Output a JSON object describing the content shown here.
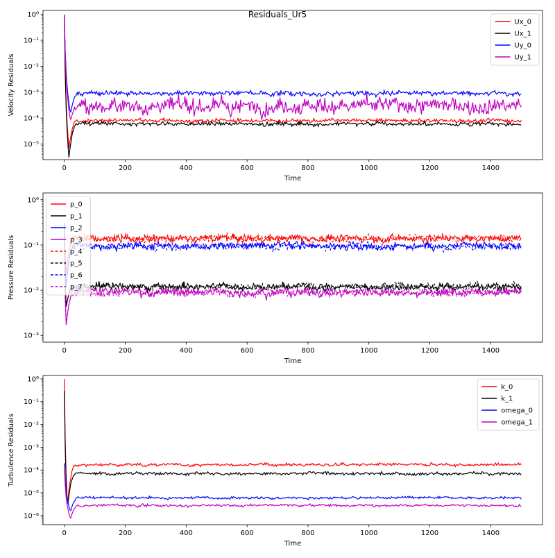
{
  "figure_title": "Residuals_Ur5",
  "chart_data": [
    {
      "type": "line",
      "title": "",
      "xlabel": "Time",
      "ylabel": "Velocity Residuals",
      "xlim": [
        -70,
        1570
      ],
      "ylim_exp": [
        -5.6,
        0.15
      ],
      "yscale": "log",
      "xticks": [
        0,
        200,
        400,
        600,
        800,
        1000,
        1200,
        1400
      ],
      "yticks": [
        {
          "v": -5,
          "label": "10⁻⁵"
        },
        {
          "v": -4,
          "label": "10⁻⁴"
        },
        {
          "v": -3,
          "label": "10⁻³"
        },
        {
          "v": -2,
          "label": "10⁻²"
        },
        {
          "v": -1,
          "label": "10⁻¹"
        },
        {
          "v": 0,
          "label": "10⁰"
        }
      ],
      "legend_position": "top-right",
      "series": [
        {
          "name": "Ux_0",
          "color": "#ff0000",
          "dash": false,
          "start": 0.95,
          "dip": 7e-06,
          "dip_t": 15,
          "steady": 8e-05,
          "noise": 0.06
        },
        {
          "name": "Ux_1",
          "color": "#000000",
          "dash": false,
          "start": 0.9,
          "dip": 3e-06,
          "dip_t": 15,
          "steady": 6e-05,
          "noise": 0.06
        },
        {
          "name": "Uy_0",
          "color": "#0000ff",
          "dash": false,
          "start": 0.95,
          "dip": 0.00015,
          "dip_t": 20,
          "steady": 0.0009,
          "noise": 0.07
        },
        {
          "name": "Uy_1",
          "color": "#bf00bf",
          "dash": false,
          "start": 0.9,
          "dip": 8e-05,
          "dip_t": 20,
          "steady": 0.0003,
          "noise": 0.22
        }
      ]
    },
    {
      "type": "line",
      "title": "",
      "xlabel": "Time",
      "ylabel": "Pressure Residuals",
      "xlim": [
        -70,
        1570
      ],
      "ylim_exp": [
        -3.15,
        0.15
      ],
      "yscale": "log",
      "xticks": [
        0,
        200,
        400,
        600,
        800,
        1000,
        1200,
        1400
      ],
      "yticks": [
        {
          "v": -3,
          "label": "10⁻³"
        },
        {
          "v": -2,
          "label": "10⁻²"
        },
        {
          "v": -1,
          "label": "10⁻¹"
        },
        {
          "v": 0,
          "label": "10⁰"
        }
      ],
      "legend_position": "top-left",
      "series": [
        {
          "name": "p_0",
          "color": "#ff0000",
          "dash": false,
          "start": 0.3,
          "dip": 0.02,
          "dip_t": 5,
          "steady": 0.14,
          "noise": 0.06
        },
        {
          "name": "p_1",
          "color": "#000000",
          "dash": false,
          "start": 0.25,
          "dip": 0.004,
          "dip_t": 5,
          "steady": 0.012,
          "noise": 0.06
        },
        {
          "name": "p_2",
          "color": "#0000ff",
          "dash": false,
          "start": 0.3,
          "dip": 0.01,
          "dip_t": 5,
          "steady": 0.095,
          "noise": 0.06
        },
        {
          "name": "p_3",
          "color": "#bf00bf",
          "dash": false,
          "start": 0.2,
          "dip": 0.0015,
          "dip_t": 5,
          "steady": 0.009,
          "noise": 0.07
        },
        {
          "name": "p_4",
          "color": "#ff0000",
          "dash": true,
          "start": 0.3,
          "dip": 0.02,
          "dip_t": 5,
          "steady": 0.14,
          "noise": 0.06
        },
        {
          "name": "p_5",
          "color": "#000000",
          "dash": true,
          "start": 0.25,
          "dip": 0.004,
          "dip_t": 5,
          "steady": 0.012,
          "noise": 0.06
        },
        {
          "name": "p_6",
          "color": "#0000ff",
          "dash": true,
          "start": 0.3,
          "dip": 0.01,
          "dip_t": 5,
          "steady": 0.095,
          "noise": 0.06
        },
        {
          "name": "p_7",
          "color": "#bf00bf",
          "dash": true,
          "start": 0.2,
          "dip": 0.0015,
          "dip_t": 5,
          "steady": 0.009,
          "noise": 0.07
        }
      ]
    },
    {
      "type": "line",
      "title": "",
      "xlabel": "Time",
      "ylabel": "Turbulence Residuals",
      "xlim": [
        -70,
        1570
      ],
      "ylim_exp": [
        -6.4,
        0.15
      ],
      "yscale": "log",
      "xticks": [
        0,
        200,
        400,
        600,
        800,
        1000,
        1200,
        1400
      ],
      "yticks": [
        {
          "v": -6,
          "label": "10⁻⁶"
        },
        {
          "v": -5,
          "label": "10⁻⁵"
        },
        {
          "v": -4,
          "label": "10⁻⁴"
        },
        {
          "v": -3,
          "label": "10⁻³"
        },
        {
          "v": -2,
          "label": "10⁻²"
        },
        {
          "v": -1,
          "label": "10⁻¹"
        },
        {
          "v": 0,
          "label": "10⁰"
        }
      ],
      "legend_position": "top-right",
      "series": [
        {
          "name": "k_0",
          "color": "#ff0000",
          "dash": false,
          "start": 1.0,
          "dip": 3e-06,
          "dip_t": 10,
          "steady": 0.00017,
          "noise": 0.05
        },
        {
          "name": "k_1",
          "color": "#000000",
          "dash": false,
          "start": 0.3,
          "dip": 2e-06,
          "dip_t": 10,
          "steady": 7e-05,
          "noise": 0.05
        },
        {
          "name": "omega_0",
          "color": "#0000ff",
          "dash": false,
          "start": 0.0002,
          "dip": 1.5e-06,
          "dip_t": 20,
          "steady": 6e-06,
          "noise": 0.04
        },
        {
          "name": "omega_1",
          "color": "#bf00bf",
          "dash": false,
          "start": 0.00015,
          "dip": 7e-07,
          "dip_t": 20,
          "steady": 2.8e-06,
          "noise": 0.04
        }
      ]
    }
  ]
}
